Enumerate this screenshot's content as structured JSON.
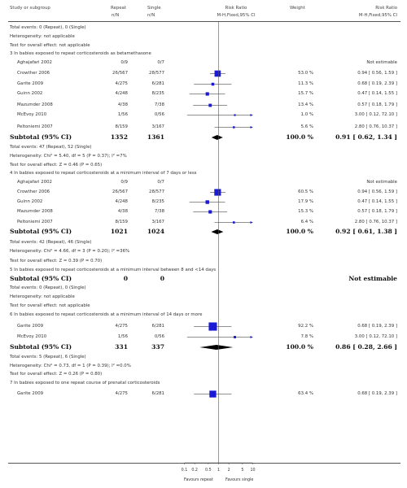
{
  "header": {
    "study": "Study or subgroup",
    "col_repeat": "Repeat",
    "col_single": "Single",
    "col_rr": "Risk Ratio",
    "col_weight": "Weight",
    "col_rr2": "Risk Ratio",
    "nN1": "n/N",
    "nN2": "n/N",
    "method1": "M-H,Fixed,95% CI",
    "method2": "M-H,Fixed,95% CI"
  },
  "rows": [
    {
      "kind": "note",
      "text": "Total events: 0 (Repeat), 0 (Single)"
    },
    {
      "kind": "note",
      "text": "Heterogeneity: not applicable"
    },
    {
      "kind": "note",
      "text": "Test for overall effect: not applicable"
    },
    {
      "kind": "group",
      "text": "3 In babies exposed to repeat corticosteroids as betamethasone"
    },
    {
      "kind": "study",
      "name": "Aghajafari 2002",
      "repeat": "0/9",
      "single": "0/7",
      "weight": "",
      "rrtext": "Not estimable"
    },
    {
      "kind": "study",
      "name": "Crowther 2006",
      "repeat": "26/567",
      "single": "28/577",
      "weight": "53.0 %",
      "rrtext": "0.94 [ 0.56, 1.59 ]",
      "est": 0.94,
      "lo": 0.56,
      "hi": 1.59,
      "w": 53.0
    },
    {
      "kind": "study",
      "name": "Garite 2009",
      "repeat": "4/275",
      "single": "6/281",
      "weight": "11.3 %",
      "rrtext": "0.68 [ 0.19, 2.39 ]",
      "est": 0.68,
      "lo": 0.19,
      "hi": 2.39,
      "w": 11.3
    },
    {
      "kind": "study",
      "name": "Guinn 2002",
      "repeat": "4/248",
      "single": "8/235",
      "weight": "15.7 %",
      "rrtext": "0.47 [ 0.14, 1.55 ]",
      "est": 0.47,
      "lo": 0.14,
      "hi": 1.55,
      "w": 15.7
    },
    {
      "kind": "study",
      "name": "Mazumder 2008",
      "repeat": "4/38",
      "single": "7/38",
      "weight": "13.4 %",
      "rrtext": "0.57 [ 0.18, 1.79 ]",
      "est": 0.57,
      "lo": 0.18,
      "hi": 1.79,
      "w": 13.4
    },
    {
      "kind": "study",
      "name": "McEvoy 2010",
      "repeat": "1/56",
      "single": "0/56",
      "weight": "1.0 %",
      "rrtext": "3.00 [ 0.12, 72.10 ]",
      "est": 3.0,
      "lo": 0.12,
      "hi": 72.1,
      "w": 1.0
    },
    {
      "kind": "study",
      "name": "Peltoniemi 2007",
      "repeat": "8/159",
      "single": "3/167",
      "weight": "5.6 %",
      "rrtext": "2.80 [ 0.76, 10.37 ]",
      "est": 2.8,
      "lo": 0.76,
      "hi": 10.37,
      "w": 5.6
    },
    {
      "kind": "subtotal",
      "name": "Subtotal (95% CI)",
      "repeat": "1352",
      "single": "1361",
      "weight": "100.0 %",
      "rrtext": "0.91 [ 0.62, 1.34 ]",
      "est": 0.91,
      "lo": 0.62,
      "hi": 1.34
    },
    {
      "kind": "note",
      "text": "Total events: 47 (Repeat), 52 (Single)"
    },
    {
      "kind": "note",
      "text": "Heterogeneity: Chi² = 5.40, df = 5 (P = 0.37); I² =7%"
    },
    {
      "kind": "note",
      "text": "Test for overall effect: Z = 0.46 (P = 0.65)"
    },
    {
      "kind": "group",
      "text": "4 In babies exposed to repeat corticosteroids at a minimum interval of 7 days or less"
    },
    {
      "kind": "study",
      "name": "Aghajafari 2002",
      "repeat": "0/9",
      "single": "0/7",
      "weight": "",
      "rrtext": "Not estimable"
    },
    {
      "kind": "study",
      "name": "Crowther 2006",
      "repeat": "26/567",
      "single": "28/577",
      "weight": "60.5 %",
      "rrtext": "0.94 [ 0.56, 1.59 ]",
      "est": 0.94,
      "lo": 0.56,
      "hi": 1.59,
      "w": 60.5
    },
    {
      "kind": "study",
      "name": "Guinn 2002",
      "repeat": "4/248",
      "single": "8/235",
      "weight": "17.9 %",
      "rrtext": "0.47 [ 0.14, 1.55 ]",
      "est": 0.47,
      "lo": 0.14,
      "hi": 1.55,
      "w": 17.9
    },
    {
      "kind": "study",
      "name": "Mazumder 2008",
      "repeat": "4/38",
      "single": "7/38",
      "weight": "15.3 %",
      "rrtext": "0.57 [ 0.18, 1.79 ]",
      "est": 0.57,
      "lo": 0.18,
      "hi": 1.79,
      "w": 15.3
    },
    {
      "kind": "study",
      "name": "Peltoniemi 2007",
      "repeat": "8/159",
      "single": "3/167",
      "weight": "6.4 %",
      "rrtext": "2.80 [ 0.76, 10.37 ]",
      "est": 2.8,
      "lo": 0.76,
      "hi": 10.37,
      "w": 6.4
    },
    {
      "kind": "subtotal",
      "name": "Subtotal (95% CI)",
      "repeat": "1021",
      "single": "1024",
      "weight": "100.0 %",
      "rrtext": "0.92 [ 0.61, 1.38 ]",
      "est": 0.92,
      "lo": 0.61,
      "hi": 1.38
    },
    {
      "kind": "note",
      "text": "Total events: 42 (Repeat), 46 (Single)"
    },
    {
      "kind": "note",
      "text": "Heterogeneity: Chi² = 4.66, df = 3 (P = 0.20); I² =36%"
    },
    {
      "kind": "note",
      "text": "Test for overall effect: Z = 0.39 (P = 0.70)"
    },
    {
      "kind": "group",
      "text": "5 In babies exposed to repeat corticosteroids at a minimum interval between 8 and <14 days"
    },
    {
      "kind": "subtotal",
      "name": "Subtotal (95% CI)",
      "repeat": "0",
      "single": "0",
      "weight": "",
      "rrtext": "Not estimable"
    },
    {
      "kind": "note",
      "text": "Total events: 0 (Repeat), 0 (Single)"
    },
    {
      "kind": "note",
      "text": "Heterogeneity: not applicable"
    },
    {
      "kind": "note",
      "text": "Test for overall effect: not applicable"
    },
    {
      "kind": "group",
      "text": "6 In babies exposed to repeat corticosteroids at a minimum interval of 14 days or more"
    },
    {
      "kind": "study",
      "name": "Garite 2009",
      "repeat": "4/275",
      "single": "6/281",
      "weight": "92.2 %",
      "rrtext": "0.68 [ 0.19, 2.39 ]",
      "est": 0.68,
      "lo": 0.19,
      "hi": 2.39,
      "w": 92.2
    },
    {
      "kind": "study",
      "name": "McEvoy 2010",
      "repeat": "1/56",
      "single": "0/56",
      "weight": "7.8 %",
      "rrtext": "3.00 [ 0.12, 72.10 ]",
      "est": 3.0,
      "lo": 0.12,
      "hi": 72.1,
      "w": 7.8
    },
    {
      "kind": "subtotal",
      "name": "Subtotal (95% CI)",
      "repeat": "331",
      "single": "337",
      "weight": "100.0 %",
      "rrtext": "0.86 [ 0.28, 2.66 ]",
      "est": 0.86,
      "lo": 0.28,
      "hi": 2.66
    },
    {
      "kind": "note",
      "text": "Total events: 5 (Repeat), 6 (Single)"
    },
    {
      "kind": "note",
      "text": "Heterogeneity: Chi² = 0.73, df = 1 (P = 0.39); I² =0.0%"
    },
    {
      "kind": "note",
      "text": "Test for overall effect: Z = 0.26 (P = 0.80)"
    },
    {
      "kind": "group",
      "text": "7 In babies exposed to one repeat course of prenatal corticosteroids"
    },
    {
      "kind": "study",
      "name": "Garite 2009",
      "repeat": "4/275",
      "single": "6/281",
      "weight": "63.4 %",
      "rrtext": "0.68 [ 0.19, 2.39 ]",
      "est": 0.68,
      "lo": 0.19,
      "hi": 2.39,
      "w": 63.4
    }
  ],
  "axis": {
    "ticks": [
      "0.1",
      "0.2",
      "0.5",
      "1",
      "2",
      "5",
      "10"
    ],
    "tick_values": [
      0.1,
      0.2,
      0.5,
      1,
      2,
      5,
      10
    ],
    "range": [
      0.1,
      10
    ],
    "scale": "log",
    "favours_left": "Favours repeat",
    "favours_right": "Favours single"
  },
  "chart_data": {
    "type": "forest",
    "scale": "log",
    "xlim": [
      0.1,
      10
    ],
    "reference_line": 1,
    "xticks": [
      "0.1",
      "0.2",
      "0.5",
      "1",
      "2",
      "5",
      "10"
    ],
    "favours": [
      "Favours repeat",
      "Favours single"
    ],
    "series": [
      {
        "name": "Crowther 2006",
        "est": 0.94,
        "lo": 0.56,
        "hi": 1.59,
        "weight": 53.0
      },
      {
        "name": "Garite 2009",
        "est": 0.68,
        "lo": 0.19,
        "hi": 2.39,
        "weight": 11.3
      },
      {
        "name": "Guinn 2002",
        "est": 0.47,
        "lo": 0.14,
        "hi": 1.55,
        "weight": 15.7
      },
      {
        "name": "Mazumder 2008",
        "est": 0.57,
        "lo": 0.18,
        "hi": 1.79,
        "weight": 13.4
      },
      {
        "name": "McEvoy 2010",
        "est": 3.0,
        "lo": 0.12,
        "hi": 72.1,
        "weight": 1.0
      },
      {
        "name": "Peltoniemi 2007",
        "est": 2.8,
        "lo": 0.76,
        "hi": 10.37,
        "weight": 5.6
      },
      {
        "name": "Subtotal (95% CI)",
        "est": 0.91,
        "lo": 0.62,
        "hi": 1.34,
        "weight": 100.0
      },
      {
        "name": "Crowther 2006",
        "est": 0.94,
        "lo": 0.56,
        "hi": 1.59,
        "weight": 60.5
      },
      {
        "name": "Guinn 2002",
        "est": 0.47,
        "lo": 0.14,
        "hi": 1.55,
        "weight": 17.9
      },
      {
        "name": "Mazumder 2008",
        "est": 0.57,
        "lo": 0.18,
        "hi": 1.79,
        "weight": 15.3
      },
      {
        "name": "Peltoniemi 2007",
        "est": 2.8,
        "lo": 0.76,
        "hi": 10.37,
        "weight": 6.4
      },
      {
        "name": "Subtotal (95% CI)",
        "est": 0.92,
        "lo": 0.61,
        "hi": 1.38,
        "weight": 100.0
      },
      {
        "name": "Garite 2009",
        "est": 0.68,
        "lo": 0.19,
        "hi": 2.39,
        "weight": 92.2
      },
      {
        "name": "McEvoy 2010",
        "est": 3.0,
        "lo": 0.12,
        "hi": 72.1,
        "weight": 7.8
      },
      {
        "name": "Subtotal (95% CI)",
        "est": 0.86,
        "lo": 0.28,
        "hi": 2.66,
        "weight": 100.0
      },
      {
        "name": "Garite 2009",
        "est": 0.68,
        "lo": 0.19,
        "hi": 2.39,
        "weight": 63.4
      }
    ],
    "colors": {
      "box": "#1a1ad6",
      "diamond": "#000000",
      "line": "#1a1ad6"
    }
  }
}
